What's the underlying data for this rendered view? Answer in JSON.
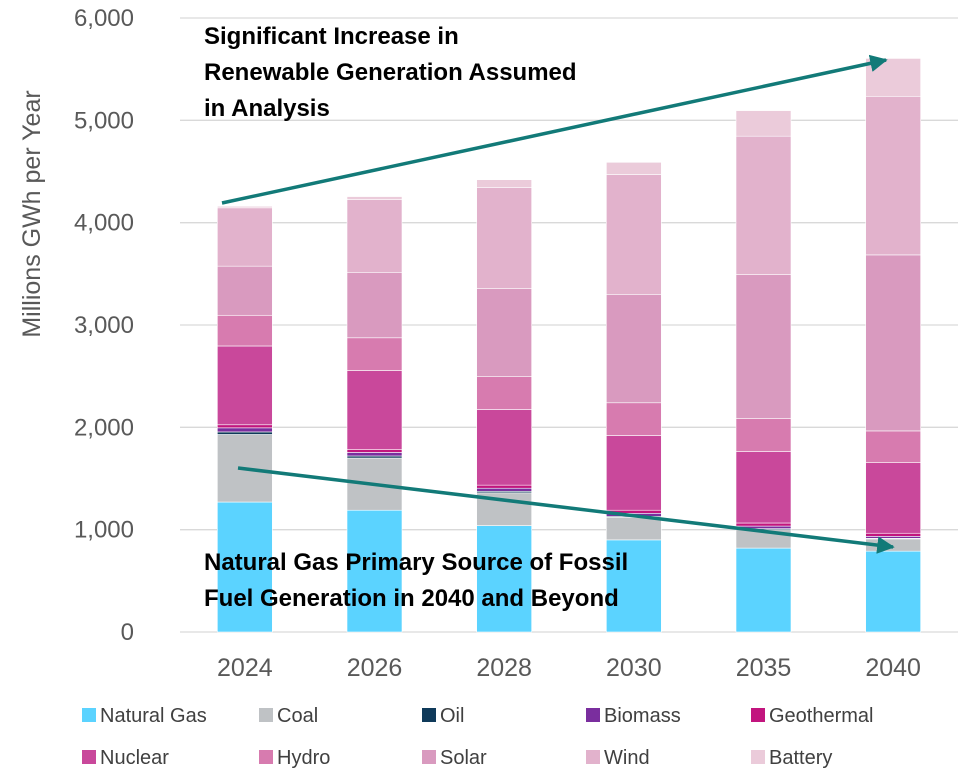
{
  "chart_data": {
    "type": "bar",
    "stacked": true,
    "title": "",
    "xlabel": "",
    "ylabel": "Millions GWh per Year",
    "ylim": [
      0,
      6000
    ],
    "yticks": [
      0,
      1000,
      2000,
      3000,
      4000,
      5000,
      6000
    ],
    "ytick_labels": [
      "0",
      "1,000",
      "2,000",
      "3,000",
      "4,000",
      "5,000",
      "6,000"
    ],
    "grid": "horizontal",
    "legend_position": "bottom",
    "categories": [
      "2024",
      "2026",
      "2028",
      "2030",
      "2035",
      "2040"
    ],
    "series": [
      {
        "name": "Natural Gas",
        "color": "#5BD3FF",
        "values": [
          1270,
          1190,
          1040,
          900,
          820,
          790
        ]
      },
      {
        "name": "Coal",
        "color": "#BFC2C5",
        "values": [
          660,
          510,
          320,
          220,
          180,
          120
        ]
      },
      {
        "name": "Oil",
        "color": "#0F3A5A",
        "values": [
          25,
          20,
          15,
          10,
          10,
          5
        ]
      },
      {
        "name": "Biomass",
        "color": "#7A2E9E",
        "values": [
          40,
          35,
          30,
          30,
          25,
          20
        ]
      },
      {
        "name": "Geothermal",
        "color": "#C2157E",
        "values": [
          30,
          30,
          30,
          30,
          30,
          30
        ]
      },
      {
        "name": "Nuclear",
        "color": "#C9489B",
        "values": [
          770,
          770,
          740,
          730,
          700,
          690
        ]
      },
      {
        "name": "Hydro",
        "color": "#D77BAF",
        "values": [
          300,
          320,
          320,
          320,
          320,
          310
        ]
      },
      {
        "name": "Solar",
        "color": "#D99ABF",
        "values": [
          480,
          640,
          860,
          1060,
          1410,
          1720
        ]
      },
      {
        "name": "Wind",
        "color": "#E2B2CC",
        "values": [
          570,
          710,
          990,
          1170,
          1350,
          1550
        ]
      },
      {
        "name": "Battery",
        "color": "#EBCBDA",
        "values": [
          15,
          30,
          75,
          120,
          250,
          370
        ]
      }
    ],
    "annotations": [
      {
        "lines": [
          "Significant Increase in",
          "Renewable Generation Assumed",
          "in Analysis"
        ]
      },
      {
        "lines": [
          "Natural Gas Primary Source of Fossil",
          "Fuel Generation in 2040 and Beyond"
        ]
      }
    ],
    "arrow_color": "#127A78"
  }
}
